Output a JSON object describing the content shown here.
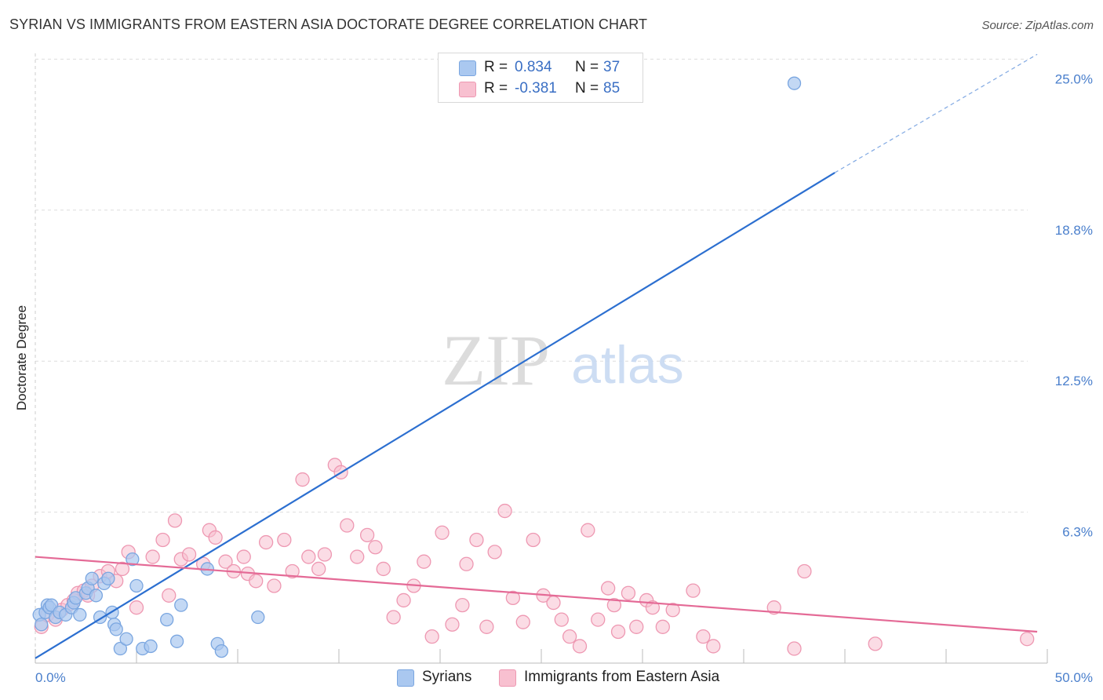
{
  "title": "SYRIAN VS IMMIGRANTS FROM EASTERN ASIA DOCTORATE DEGREE CORRELATION CHART",
  "source": "Source: ZipAtlas.com",
  "watermark": {
    "zip": "ZIP",
    "atlas": "atlas"
  },
  "legend_top": {
    "rows": [
      {
        "r_label": "R =",
        "r_value": "0.834",
        "n_label": "N =",
        "n_value": "37",
        "color": "#aac8f0"
      },
      {
        "r_label": "R =",
        "r_value": "-0.381",
        "n_label": "N =",
        "n_value": "85",
        "color": "#f8c0d0"
      }
    ]
  },
  "legend_bottom": {
    "items": [
      {
        "label": "Syrians",
        "color": "#aac8f0"
      },
      {
        "label": "Immigrants from Eastern Asia",
        "color": "#f8c0d0"
      }
    ]
  },
  "colors": {
    "syrian_fill": "#aac8f0",
    "syrian_stroke": "#7aa6e0",
    "syrian_line": "#2c6fd0",
    "asia_fill": "#f8c0d0",
    "asia_stroke": "#ee98b2",
    "asia_line": "#e46a96",
    "grid": "#dddddd",
    "axis_text": "#4a7fcc"
  },
  "chart_data": {
    "type": "scatter",
    "title": "SYRIAN VS IMMIGRANTS FROM EASTERN ASIA DOCTORATE DEGREE CORRELATION CHART",
    "xlabel": "",
    "ylabel": "Doctorate Degree",
    "xlim": [
      0,
      50
    ],
    "ylim": [
      0,
      25.5
    ],
    "x_tick_labels": [
      {
        "value": 0,
        "label": "0.0%"
      },
      {
        "value": 50,
        "label": "50.0%"
      }
    ],
    "y_tick_labels": [
      {
        "value": 6.25,
        "label": "6.3%"
      },
      {
        "value": 12.5,
        "label": "12.5%"
      },
      {
        "value": 18.75,
        "label": "18.8%"
      },
      {
        "value": 25,
        "label": "25.0%"
      }
    ],
    "x_minor_ticks": [
      0,
      5,
      10,
      15,
      20,
      25,
      30,
      35,
      40,
      45,
      50
    ],
    "grid": true,
    "series": [
      {
        "name": "Syrians",
        "r": 0.834,
        "n": 37,
        "trend": {
          "x0": 0,
          "y0": 0.2,
          "x1": 39.5,
          "y1": 20.3,
          "dashed_to": {
            "x": 49.5,
            "y": 25.2
          }
        },
        "points": [
          [
            0.2,
            2.0
          ],
          [
            0.5,
            2.1
          ],
          [
            0.6,
            2.4
          ],
          [
            0.7,
            2.3
          ],
          [
            0.8,
            2.4
          ],
          [
            1.0,
            1.9
          ],
          [
            1.2,
            2.1
          ],
          [
            1.5,
            2.0
          ],
          [
            1.8,
            2.3
          ],
          [
            1.9,
            2.5
          ],
          [
            2.0,
            2.7
          ],
          [
            2.2,
            2.0
          ],
          [
            2.5,
            2.9
          ],
          [
            2.6,
            3.1
          ],
          [
            2.8,
            3.5
          ],
          [
            3.0,
            2.8
          ],
          [
            3.2,
            1.9
          ],
          [
            3.4,
            3.3
          ],
          [
            3.6,
            3.5
          ],
          [
            3.8,
            2.1
          ],
          [
            3.9,
            1.6
          ],
          [
            4.0,
            1.4
          ],
          [
            4.2,
            0.6
          ],
          [
            4.5,
            1.0
          ],
          [
            4.8,
            4.3
          ],
          [
            5.0,
            3.2
          ],
          [
            5.3,
            0.6
          ],
          [
            5.7,
            0.7
          ],
          [
            6.5,
            1.8
          ],
          [
            7.0,
            0.9
          ],
          [
            7.2,
            2.4
          ],
          [
            8.5,
            3.9
          ],
          [
            9.0,
            0.8
          ],
          [
            9.2,
            0.5
          ],
          [
            11.0,
            1.9
          ],
          [
            37.5,
            24.0
          ],
          [
            0.3,
            1.6
          ]
        ]
      },
      {
        "name": "Immigrants from Eastern Asia",
        "r": -0.381,
        "n": 85,
        "trend": {
          "x0": 0,
          "y0": 4.4,
          "x1": 49.5,
          "y1": 1.3
        },
        "points": [
          [
            0.3,
            1.5
          ],
          [
            0.6,
            2.0
          ],
          [
            1.0,
            1.8
          ],
          [
            1.3,
            2.2
          ],
          [
            1.6,
            2.4
          ],
          [
            1.9,
            2.6
          ],
          [
            2.1,
            2.9
          ],
          [
            2.4,
            3.0
          ],
          [
            2.6,
            2.8
          ],
          [
            2.8,
            3.2
          ],
          [
            3.2,
            3.6
          ],
          [
            3.6,
            3.8
          ],
          [
            4.0,
            3.4
          ],
          [
            4.3,
            3.9
          ],
          [
            4.6,
            4.6
          ],
          [
            5.0,
            2.3
          ],
          [
            5.8,
            4.4
          ],
          [
            6.3,
            5.1
          ],
          [
            6.6,
            2.8
          ],
          [
            6.9,
            5.9
          ],
          [
            7.2,
            4.3
          ],
          [
            7.6,
            4.5
          ],
          [
            8.3,
            4.1
          ],
          [
            8.6,
            5.5
          ],
          [
            8.9,
            5.2
          ],
          [
            9.4,
            4.2
          ],
          [
            9.8,
            3.8
          ],
          [
            10.3,
            4.4
          ],
          [
            10.5,
            3.7
          ],
          [
            10.9,
            3.4
          ],
          [
            11.4,
            5.0
          ],
          [
            11.8,
            3.2
          ],
          [
            12.3,
            5.1
          ],
          [
            12.7,
            3.8
          ],
          [
            13.2,
            7.6
          ],
          [
            13.5,
            4.4
          ],
          [
            14.0,
            3.9
          ],
          [
            14.3,
            4.5
          ],
          [
            14.8,
            8.2
          ],
          [
            15.1,
            7.9
          ],
          [
            15.4,
            5.7
          ],
          [
            15.9,
            4.4
          ],
          [
            16.4,
            5.3
          ],
          [
            16.8,
            4.8
          ],
          [
            17.2,
            3.9
          ],
          [
            17.7,
            1.9
          ],
          [
            18.2,
            2.6
          ],
          [
            18.7,
            3.2
          ],
          [
            19.2,
            4.2
          ],
          [
            19.6,
            1.1
          ],
          [
            20.1,
            5.4
          ],
          [
            20.6,
            1.6
          ],
          [
            21.1,
            2.4
          ],
          [
            21.3,
            4.1
          ],
          [
            21.8,
            5.1
          ],
          [
            22.3,
            1.5
          ],
          [
            22.7,
            4.6
          ],
          [
            23.2,
            6.3
          ],
          [
            23.6,
            2.7
          ],
          [
            24.1,
            1.7
          ],
          [
            24.6,
            5.1
          ],
          [
            25.1,
            2.8
          ],
          [
            25.6,
            2.5
          ],
          [
            26.0,
            1.8
          ],
          [
            26.4,
            1.1
          ],
          [
            26.9,
            0.7
          ],
          [
            27.3,
            5.5
          ],
          [
            27.8,
            1.8
          ],
          [
            28.3,
            3.1
          ],
          [
            28.6,
            2.4
          ],
          [
            28.8,
            1.3
          ],
          [
            29.3,
            2.9
          ],
          [
            29.7,
            1.5
          ],
          [
            30.2,
            2.6
          ],
          [
            30.5,
            2.3
          ],
          [
            31.0,
            1.5
          ],
          [
            31.5,
            2.2
          ],
          [
            32.5,
            3.0
          ],
          [
            33.0,
            1.1
          ],
          [
            33.5,
            0.7
          ],
          [
            36.5,
            2.3
          ],
          [
            37.5,
            0.6
          ],
          [
            38.0,
            3.8
          ],
          [
            41.5,
            0.8
          ],
          [
            49.0,
            1.0
          ]
        ]
      }
    ]
  }
}
